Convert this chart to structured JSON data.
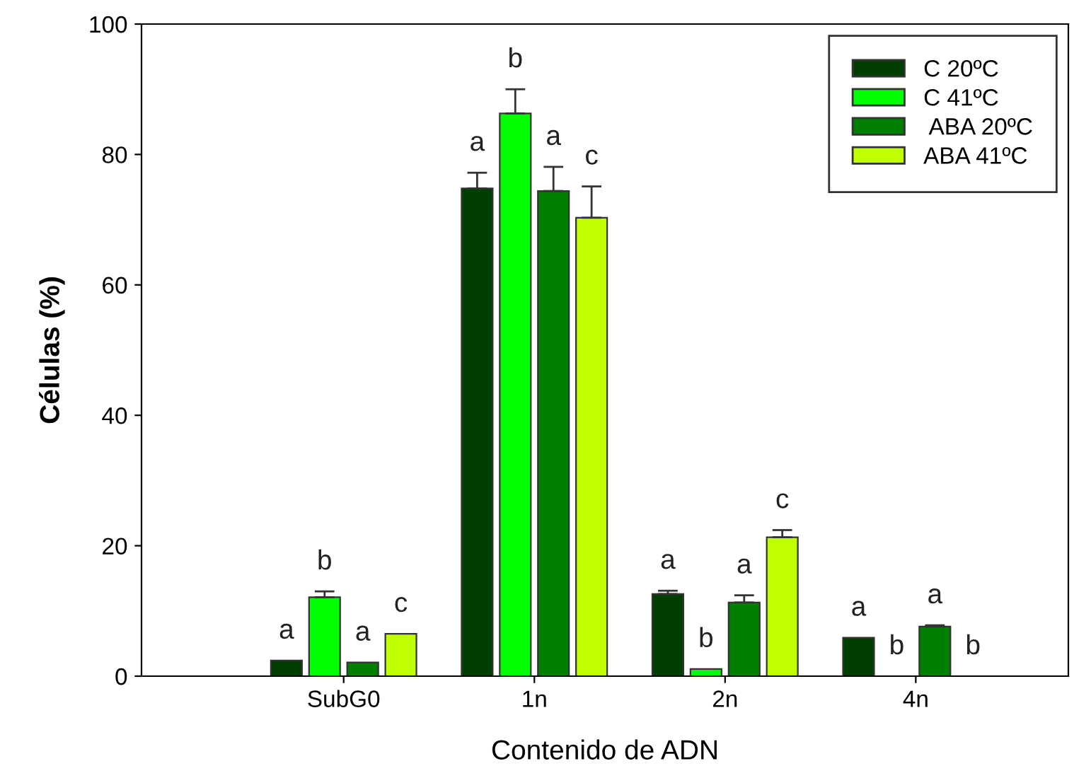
{
  "chart_data": {
    "type": "bar",
    "xlabel": "Contenido de ADN",
    "ylabel": "Células (%)",
    "categories": [
      "SubG0",
      "1n",
      "2n",
      "4n"
    ],
    "ylim": [
      0,
      100
    ],
    "yticks": [
      0,
      20,
      40,
      60,
      80,
      100
    ],
    "grid": false,
    "legend": "top right",
    "series": [
      {
        "name": "C 20ºC",
        "color": "#003f00",
        "values": [
          2.4,
          74.8,
          12.6,
          5.9
        ],
        "errors": [
          null,
          2.4,
          0.5,
          null
        ],
        "value_labels": [
          "a",
          "a",
          "a",
          "a"
        ]
      },
      {
        "name": "C 41ºC",
        "color": "#00ff00",
        "values": [
          12.1,
          86.3,
          1.1,
          null
        ],
        "errors": [
          0.9,
          3.7,
          null,
          null
        ],
        "value_labels": [
          "b",
          "b",
          "b",
          "b"
        ]
      },
      {
        "name": " ABA 20ºC",
        "color": "#007f00",
        "values": [
          2.1,
          74.4,
          11.3,
          7.6
        ],
        "errors": [
          null,
          3.7,
          1.1,
          0.2
        ],
        "value_labels": [
          "a",
          "a",
          "a",
          "a"
        ]
      },
      {
        "name": "ABA 41ºC",
        "color": "#bfff00",
        "values": [
          6.5,
          70.3,
          21.3,
          null
        ],
        "errors": [
          null,
          4.8,
          1.1,
          null
        ],
        "value_labels": [
          "c",
          "c",
          "c",
          "b"
        ]
      }
    ]
  }
}
